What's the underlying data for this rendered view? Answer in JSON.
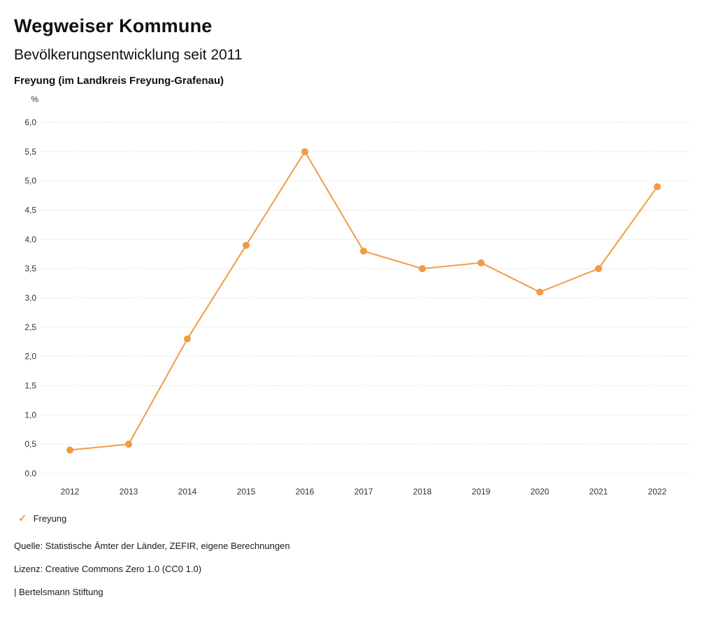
{
  "header": {
    "title": "Wegweiser Kommune",
    "subtitle": "Bevölkerungsentwicklung seit 2011",
    "region": "Freyung (im Landkreis Freyung-Grafenau)"
  },
  "chart_data": {
    "type": "line",
    "title": "Bevölkerungsentwicklung seit 2011",
    "unit": "%",
    "x": [
      "2012",
      "2013",
      "2014",
      "2015",
      "2016",
      "2017",
      "2018",
      "2019",
      "2020",
      "2021",
      "2022"
    ],
    "series": [
      {
        "name": "Freyung",
        "values": [
          0.4,
          0.5,
          2.3,
          3.9,
          5.5,
          3.8,
          3.5,
          3.6,
          3.1,
          3.5,
          4.9
        ],
        "color": "#f09b45"
      }
    ],
    "ylim": [
      0.0,
      6.0
    ],
    "ytick_step": 0.5,
    "ytick_labels": [
      "0,0",
      "0,5",
      "1,0",
      "1,5",
      "2,0",
      "2,5",
      "3,0",
      "3,5",
      "4,0",
      "4,5",
      "5,0",
      "5,5",
      "6,0"
    ],
    "grid": "horizontal-dotted",
    "legend_position": "bottom-left",
    "decimal_separator": ","
  },
  "legend": {
    "check_glyph": "✓",
    "label": "Freyung",
    "color": "#f09b45"
  },
  "footer": {
    "source": "Quelle: Statistische Ämter der Länder, ZEFIR, eigene Berechnungen",
    "license": "Lizenz: Creative Commons Zero 1.0 (CC0 1.0)",
    "attribution": "| Bertelsmann Stiftung"
  }
}
